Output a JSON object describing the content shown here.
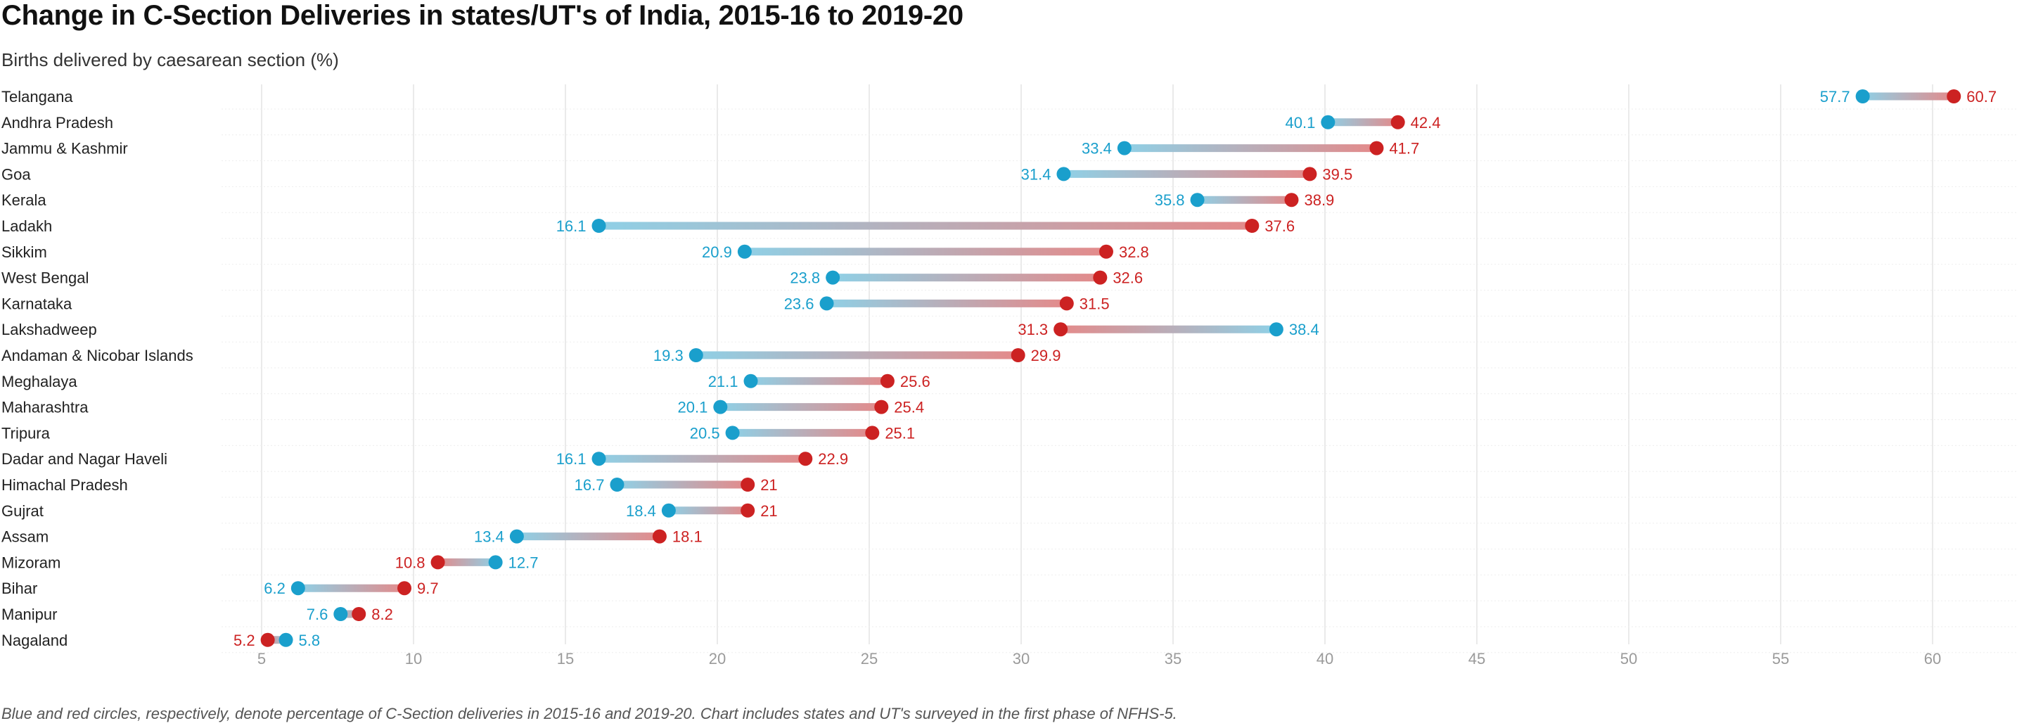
{
  "title": "Change in C-Section Deliveries in states/UT's of India, 2015-16 to 2019-20",
  "subtitle": "Births delivered by caesarean section (%)",
  "footnote": "Blue and red circles, respectively, denote percentage of C-Section deliveries in 2015-16 and 2019-20. Chart includes states and UT's surveyed in the first phase of NFHS-5.",
  "colors": {
    "year_2015_16": "#1a9fcc",
    "year_2019_20": "#cc2222",
    "grid": "#e3e3e3",
    "tick": "#9a9a9a",
    "label": "#222222"
  },
  "chart_data": {
    "type": "dumbbell",
    "xlim": [
      3.5,
      62
    ],
    "x_ticks": [
      5,
      10,
      15,
      20,
      25,
      30,
      35,
      40,
      45,
      50,
      55,
      60
    ],
    "grid": true,
    "series": [
      {
        "name": "2015-16",
        "color": "#1a9fcc"
      },
      {
        "name": "2019-20",
        "color": "#cc2222"
      }
    ],
    "rows": [
      {
        "label": "Telangana",
        "v2015": 57.7,
        "v2020": 60.7
      },
      {
        "label": "Andhra Pradesh",
        "v2015": 40.1,
        "v2020": 42.4
      },
      {
        "label": "Jammu & Kashmir",
        "v2015": 33.4,
        "v2020": 41.7
      },
      {
        "label": "Goa",
        "v2015": 31.4,
        "v2020": 39.5
      },
      {
        "label": "Kerala",
        "v2015": 35.8,
        "v2020": 38.9
      },
      {
        "label": "Ladakh",
        "v2015": 16.1,
        "v2020": 37.6
      },
      {
        "label": "Sikkim",
        "v2015": 20.9,
        "v2020": 32.8
      },
      {
        "label": "West Bengal",
        "v2015": 23.8,
        "v2020": 32.6
      },
      {
        "label": "Karnataka",
        "v2015": 23.6,
        "v2020": 31.5
      },
      {
        "label": "Lakshadweep",
        "v2015": 38.4,
        "v2020": 31.3
      },
      {
        "label": "Andaman & Nicobar Islands",
        "v2015": 19.3,
        "v2020": 29.9
      },
      {
        "label": "Meghalaya",
        "v2015": 21.1,
        "v2020": 25.6
      },
      {
        "label": "Maharashtra",
        "v2015": 20.1,
        "v2020": 25.4
      },
      {
        "label": "Tripura",
        "v2015": 20.5,
        "v2020": 25.1
      },
      {
        "label": "Dadar and Nagar Haveli",
        "v2015": 16.1,
        "v2020": 22.9
      },
      {
        "label": "Himachal Pradesh",
        "v2015": 16.7,
        "v2020": 21
      },
      {
        "label": "Gujrat",
        "v2015": 18.4,
        "v2020": 21
      },
      {
        "label": "Assam",
        "v2015": 13.4,
        "v2020": 18.1
      },
      {
        "label": "Mizoram",
        "v2015": 12.7,
        "v2020": 10.8
      },
      {
        "label": "Bihar",
        "v2015": 6.2,
        "v2020": 9.7
      },
      {
        "label": "Manipur",
        "v2015": 7.6,
        "v2020": 8.2
      },
      {
        "label": "Nagaland",
        "v2015": 5.8,
        "v2020": 5.2
      }
    ]
  }
}
